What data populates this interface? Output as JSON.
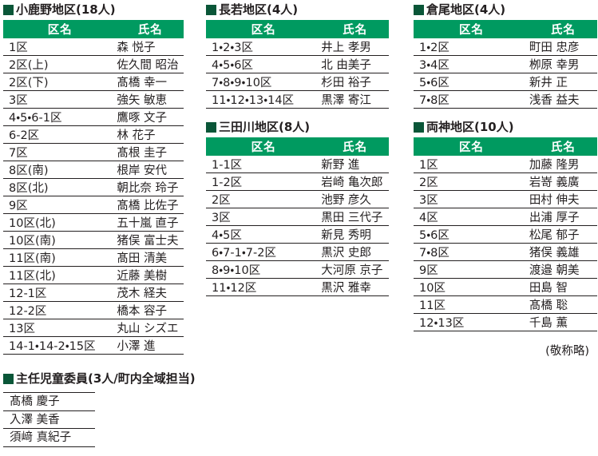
{
  "colors": {
    "header_bg": "#009a60",
    "header_text": "#ffffff",
    "bullet": "#0a5638",
    "text": "#231f20"
  },
  "table_headers": {
    "district": "区名",
    "name": "氏名"
  },
  "sections": {
    "ogano": {
      "title": "小鹿野地区(18人)",
      "rows": [
        {
          "district": "1区",
          "name": "森 悦子"
        },
        {
          "district": "2区(上)",
          "name": "佐久間 昭治"
        },
        {
          "district": "2区(下)",
          "name": "髙橋 幸一"
        },
        {
          "district": "3区",
          "name": "強矢 敏恵"
        },
        {
          "district": "4・5・6-1区",
          "name": "鷹啄 文子"
        },
        {
          "district": "6-2区",
          "name": "林 花子"
        },
        {
          "district": "7区",
          "name": "髙根 圭子"
        },
        {
          "district": "8区(南)",
          "name": "根岸 安代"
        },
        {
          "district": "8区(北)",
          "name": "朝比奈 玲子"
        },
        {
          "district": "9区",
          "name": "髙橋 比佐子"
        },
        {
          "district": "10区(北)",
          "name": "五十嵐 直子"
        },
        {
          "district": "10区(南)",
          "name": "猪俣 富士夫"
        },
        {
          "district": "11区(南)",
          "name": "髙田 清美"
        },
        {
          "district": "11区(北)",
          "name": "近藤 美樹"
        },
        {
          "district": "12-1区",
          "name": "茂木 経夫"
        },
        {
          "district": "12-2区",
          "name": "橋本 容子"
        },
        {
          "district": "13区",
          "name": "丸山 シズエ"
        },
        {
          "district": "14-1・14-2・15区",
          "name": "小澤 進"
        }
      ]
    },
    "nagawaka": {
      "title": "長若地区(4人)",
      "rows": [
        {
          "district": "1・2・3区",
          "name": "井上 孝男"
        },
        {
          "district": "4・5・6区",
          "name": "北 由美子"
        },
        {
          "district": "7・8・9・10区",
          "name": "杉田 裕子"
        },
        {
          "district": "11・12・13・14区",
          "name": "黒澤 寄江"
        }
      ]
    },
    "mitagawa": {
      "title": "三田川地区(8人)",
      "rows": [
        {
          "district": "1-1区",
          "name": "新野 進"
        },
        {
          "district": "1-2区",
          "name": "岩崎 亀次郎"
        },
        {
          "district": "2区",
          "name": "池野 彦久"
        },
        {
          "district": "3区",
          "name": "黒田 三代子"
        },
        {
          "district": "4・5区",
          "name": "新見 秀明"
        },
        {
          "district": "6・7-1・7-2区",
          "name": "黒沢 史郎"
        },
        {
          "district": "8・9・10区",
          "name": "大河原 京子"
        },
        {
          "district": "11・12区",
          "name": "黒沢 雅幸"
        }
      ]
    },
    "kurao": {
      "title": "倉尾地区(4人)",
      "rows": [
        {
          "district": "1・2区",
          "name": "町田 忠彦"
        },
        {
          "district": "3・4区",
          "name": "栁原 幸男"
        },
        {
          "district": "5・6区",
          "name": "新井 正"
        },
        {
          "district": "7・8区",
          "name": "浅香 益夫"
        }
      ]
    },
    "ryokami": {
      "title": "両神地区(10人)",
      "note": "(敬称略)",
      "rows": [
        {
          "district": "1区",
          "name": "加藤 隆男"
        },
        {
          "district": "2区",
          "name": "岩嵜 義廣"
        },
        {
          "district": "3区",
          "name": "田村 伸夫"
        },
        {
          "district": "4区",
          "name": "出浦 厚子"
        },
        {
          "district": "5・6区",
          "name": "松尾 郁子"
        },
        {
          "district": "7・8区",
          "name": "猪俣 義雄"
        },
        {
          "district": "9区",
          "name": "渡邉 朝美"
        },
        {
          "district": "10区",
          "name": "田島 智"
        },
        {
          "district": "11区",
          "name": "髙橋 聡"
        },
        {
          "district": "12・13区",
          "name": "千島 薫"
        }
      ]
    },
    "chief": {
      "title": "主任児童委員(3人/町内全域担当)",
      "names": [
        "髙橋 慶子",
        "入澤 美香",
        "須﨑 真紀子"
      ]
    }
  }
}
